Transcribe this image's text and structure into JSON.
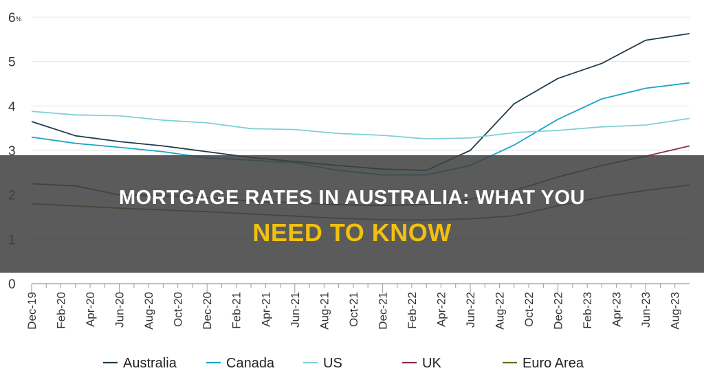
{
  "chart_data": {
    "type": "line",
    "title": "",
    "xlabel": "",
    "ylabel": "",
    "ylim": [
      0,
      6
    ],
    "yticks": [
      0,
      1,
      2,
      3,
      4,
      5,
      6
    ],
    "y_top_unit": "%",
    "grid": "horizontal",
    "legend_position": "bottom",
    "x_tick_labels": [
      "Dec-19",
      "Feb-20",
      "Apr-20",
      "Jun-20",
      "Aug-20",
      "Oct-20",
      "Dec-20",
      "Feb-21",
      "Apr-21",
      "Jun-21",
      "Aug-21",
      "Oct-21",
      "Dec-21",
      "Feb-22",
      "Apr-22",
      "Jun-22",
      "Aug-22",
      "Oct-22",
      "Dec-22",
      "Feb-23",
      "Apr-23",
      "Jun-23",
      "Aug-23"
    ],
    "x": [
      0,
      1,
      2,
      3,
      4,
      5,
      6,
      7,
      8,
      9,
      10,
      11,
      12,
      13,
      14,
      15,
      16,
      17,
      18,
      19,
      20,
      21,
      22,
      23,
      24,
      25,
      26,
      27,
      28,
      29,
      30,
      31,
      32,
      33,
      34,
      35,
      36,
      37,
      38,
      39,
      40,
      41,
      42,
      43,
      44
    ],
    "series": [
      {
        "name": "Australia",
        "color": "#1f3b4d",
        "points": [
          [
            0,
            3.65
          ],
          [
            3,
            3.33
          ],
          [
            6,
            3.2
          ],
          [
            9,
            3.1
          ],
          [
            12,
            2.97
          ],
          [
            15,
            2.84
          ],
          [
            18,
            2.75
          ],
          [
            21,
            2.66
          ],
          [
            24,
            2.58
          ],
          [
            27,
            2.55
          ],
          [
            30,
            3.0
          ],
          [
            33,
            4.05
          ],
          [
            36,
            4.62
          ],
          [
            39,
            4.96
          ],
          [
            42,
            5.48
          ],
          [
            45,
            5.63
          ]
        ]
      },
      {
        "name": "Canada",
        "color": "#1aa5c8",
        "points": [
          [
            0,
            3.3
          ],
          [
            3,
            3.16
          ],
          [
            6,
            3.07
          ],
          [
            9,
            2.97
          ],
          [
            12,
            2.83
          ],
          [
            15,
            2.78
          ],
          [
            18,
            2.72
          ],
          [
            21,
            2.55
          ],
          [
            24,
            2.45
          ],
          [
            27,
            2.45
          ],
          [
            30,
            2.66
          ],
          [
            33,
            3.12
          ],
          [
            36,
            3.7
          ],
          [
            39,
            4.16
          ],
          [
            42,
            4.4
          ],
          [
            45,
            4.52
          ]
        ]
      },
      {
        "name": "US",
        "color": "#7fcfd6",
        "points": [
          [
            0,
            3.88
          ],
          [
            3,
            3.8
          ],
          [
            6,
            3.78
          ],
          [
            9,
            3.68
          ],
          [
            12,
            3.62
          ],
          [
            15,
            3.49
          ],
          [
            18,
            3.47
          ],
          [
            21,
            3.38
          ],
          [
            24,
            3.34
          ],
          [
            27,
            3.26
          ],
          [
            30,
            3.28
          ],
          [
            33,
            3.4
          ],
          [
            36,
            3.45
          ],
          [
            39,
            3.53
          ],
          [
            42,
            3.57
          ],
          [
            45,
            3.72
          ]
        ]
      },
      {
        "name": "UK",
        "color": "#8a2c4f",
        "points": [
          [
            0,
            2.25
          ],
          [
            3,
            2.2
          ],
          [
            6,
            2.0
          ],
          [
            9,
            1.98
          ],
          [
            12,
            1.93
          ],
          [
            15,
            1.86
          ],
          [
            18,
            1.82
          ],
          [
            21,
            1.78
          ],
          [
            24,
            1.76
          ],
          [
            27,
            1.78
          ],
          [
            30,
            1.9
          ],
          [
            33,
            2.1
          ],
          [
            36,
            2.4
          ],
          [
            39,
            2.66
          ],
          [
            42,
            2.87
          ],
          [
            45,
            3.1
          ]
        ]
      },
      {
        "name": "Euro Area",
        "color": "#6e6a1a",
        "points": [
          [
            0,
            1.8
          ],
          [
            3,
            1.75
          ],
          [
            6,
            1.7
          ],
          [
            9,
            1.66
          ],
          [
            12,
            1.62
          ],
          [
            15,
            1.57
          ],
          [
            18,
            1.52
          ],
          [
            21,
            1.47
          ],
          [
            24,
            1.44
          ],
          [
            27,
            1.43
          ],
          [
            30,
            1.46
          ],
          [
            33,
            1.53
          ],
          [
            36,
            1.75
          ],
          [
            39,
            1.95
          ],
          [
            42,
            2.1
          ],
          [
            45,
            2.22
          ]
        ]
      }
    ]
  },
  "overlay": {
    "title_line1": "MORTGAGE RATES IN AUSTRALIA: WHAT YOU",
    "title_line2": "NEED TO KNOW"
  }
}
